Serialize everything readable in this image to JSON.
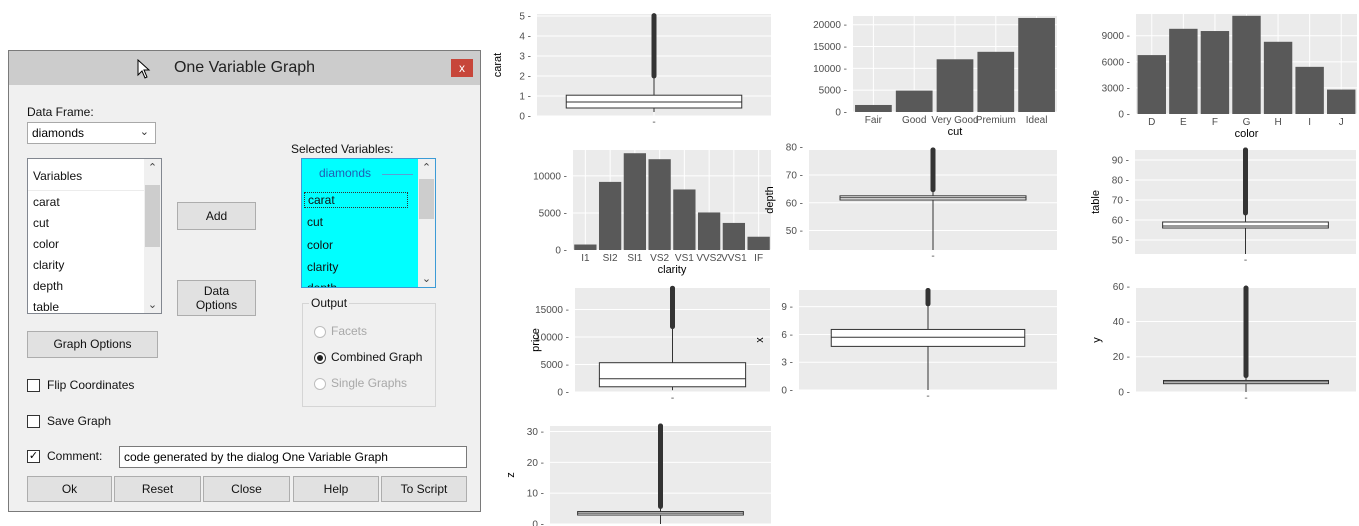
{
  "dialog": {
    "title": "One Variable Graph",
    "close_glyph": "x",
    "data_frame_label": "Data Frame:",
    "data_frame_value": "diamonds",
    "variables_header": "Variables",
    "variables": [
      "carat",
      "cut",
      "color",
      "clarity",
      "depth",
      "table"
    ],
    "selected_label": "Selected Variables:",
    "selected_header": "diamonds",
    "selected": [
      "carat",
      "cut",
      "color",
      "clarity",
      "depth"
    ],
    "add_label": "Add",
    "data_options_line1": "Data",
    "data_options_line2": "Options",
    "output_label": "Output",
    "output_options": [
      {
        "label": "Facets",
        "checked": false,
        "enabled": false
      },
      {
        "label": "Combined Graph",
        "checked": true,
        "enabled": true
      },
      {
        "label": "Single Graphs",
        "checked": false,
        "enabled": false
      }
    ],
    "graph_options_label": "Graph Options",
    "flip_label": "Flip Coordinates",
    "flip_checked": false,
    "save_label": "Save Graph",
    "save_checked": false,
    "comment_label": "Comment:",
    "comment_checked": true,
    "comment_value": "code generated by the dialog One Variable Graph",
    "buttons": {
      "ok": "Ok",
      "reset": "Reset",
      "close": "Close",
      "help": "Help",
      "to_script": "To Script"
    }
  },
  "colors": {
    "panel_bg": "#ebebeb",
    "grid": "#ffffff",
    "bar": "#595959",
    "selection": "#00ffff",
    "close": "#c7463a"
  },
  "chart_data": [
    {
      "id": "carat",
      "type": "boxplot",
      "ylabel": "carat",
      "xlabel": "",
      "yticks": [
        0,
        1,
        2,
        3,
        4,
        5
      ],
      "ylim": [
        0,
        5.1
      ],
      "box": {
        "min": 0.2,
        "q1": 0.4,
        "median": 0.7,
        "q3": 1.04,
        "whisker_high": 2.0,
        "max": 5.01
      }
    },
    {
      "id": "cut",
      "type": "bar",
      "xlabel": "cut",
      "ylabel": "",
      "categories": [
        "Fair",
        "Good",
        "Very Good",
        "Premium",
        "Ideal"
      ],
      "values": [
        1610,
        4906,
        12082,
        13791,
        21551
      ],
      "yticks": [
        0,
        5000,
        10000,
        15000,
        20000
      ],
      "ylim": [
        0,
        22000
      ]
    },
    {
      "id": "color",
      "type": "bar",
      "xlabel": "color",
      "ylabel": "",
      "categories": [
        "D",
        "E",
        "F",
        "G",
        "H",
        "I",
        "J"
      ],
      "values": [
        6775,
        9797,
        9542,
        11292,
        8304,
        5422,
        2808
      ],
      "yticks": [
        0,
        3000,
        6000,
        9000
      ],
      "ylim": [
        0,
        11500
      ]
    },
    {
      "id": "clarity",
      "type": "bar",
      "xlabel": "clarity",
      "ylabel": "",
      "categories": [
        "I1",
        "SI2",
        "SI1",
        "VS2",
        "VS1",
        "VVS2",
        "VVS1",
        "IF"
      ],
      "values": [
        741,
        9194,
        13065,
        12258,
        8171,
        5066,
        3655,
        1790
      ],
      "yticks": [
        0,
        5000,
        10000
      ],
      "ylim": [
        0,
        13500
      ]
    },
    {
      "id": "depth",
      "type": "boxplot",
      "ylabel": "depth",
      "xlabel": "",
      "yticks": [
        50,
        60,
        70,
        80
      ],
      "ylim": [
        43,
        79
      ],
      "box": {
        "min": 43,
        "q1": 61.0,
        "median": 61.8,
        "q3": 62.5,
        "whisker_high": 64.7,
        "max": 79
      }
    },
    {
      "id": "table",
      "type": "boxplot",
      "ylabel": "table",
      "xlabel": "",
      "yticks": [
        50,
        60,
        70,
        80,
        90
      ],
      "ylim": [
        43,
        95
      ],
      "box": {
        "min": 43,
        "q1": 56,
        "median": 57,
        "q3": 59,
        "whisker_high": 63.5,
        "max": 95
      }
    },
    {
      "id": "price",
      "type": "boxplot",
      "ylabel": "price",
      "xlabel": "",
      "yticks": [
        0,
        5000,
        10000,
        15000
      ],
      "ylim": [
        0,
        18900
      ],
      "box": {
        "min": 326,
        "q1": 950,
        "median": 2401,
        "q3": 5324,
        "whisker_high": 11886,
        "max": 18823
      }
    },
    {
      "id": "x",
      "type": "boxplot",
      "ylabel": "x",
      "xlabel": "",
      "yticks": [
        0,
        3,
        6,
        9
      ],
      "ylim": [
        0,
        10.8
      ],
      "box": {
        "min": 0,
        "q1": 4.71,
        "median": 5.7,
        "q3": 6.54,
        "whisker_high": 9.3,
        "max": 10.74
      }
    },
    {
      "id": "y",
      "type": "boxplot",
      "ylabel": "y",
      "xlabel": "",
      "yticks": [
        0,
        20,
        40,
        60
      ],
      "ylim": [
        0,
        59
      ],
      "box": {
        "min": 0,
        "q1": 4.72,
        "median": 5.71,
        "q3": 6.54,
        "whisker_high": 9.3,
        "max": 58.9
      }
    },
    {
      "id": "z",
      "type": "boxplot",
      "ylabel": "z",
      "xlabel": "",
      "yticks": [
        0,
        10,
        20,
        30
      ],
      "ylim": [
        0,
        31.8
      ],
      "box": {
        "min": 0,
        "q1": 2.91,
        "median": 3.53,
        "q3": 4.04,
        "whisker_high": 5.7,
        "max": 31.8
      }
    }
  ]
}
